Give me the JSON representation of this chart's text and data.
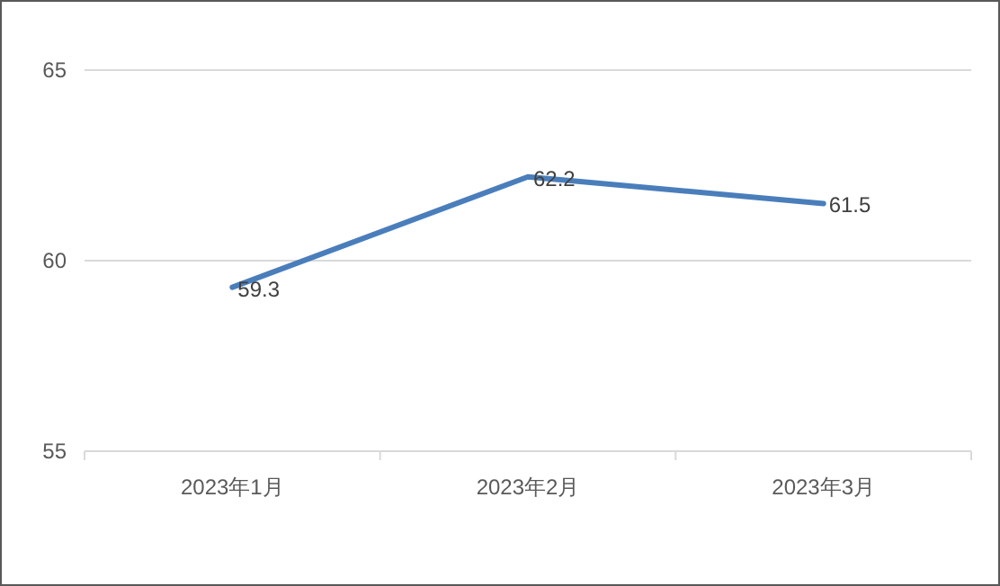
{
  "chart_data": {
    "type": "line",
    "categories": [
      "2023年1月",
      "2023年2月",
      "2023年3月"
    ],
    "series": [
      {
        "color": "#4a7ebb",
        "values": [
          59.3,
          62.2,
          61.5
        ]
      }
    ],
    "ylim": [
      55,
      65
    ],
    "yticks": [
      55,
      60,
      65
    ],
    "grid": "y",
    "data_labels": true
  }
}
